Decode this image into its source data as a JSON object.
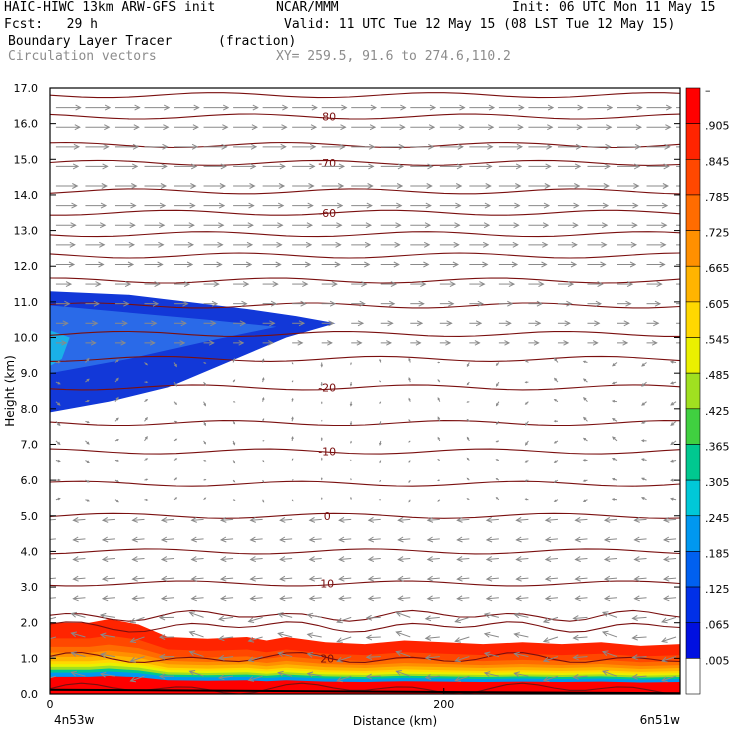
{
  "header": {
    "model_line": "HAIC-HIWC 13km ARW-GFS init",
    "org": "NCAR/MMM",
    "init_line": "Init: 06 UTC Mon 11 May 15",
    "fcst_line": "Fcst:   29 h",
    "valid_line": "Valid: 11 UTC Tue 12 May 15 (08 LST Tue 12 May 15)",
    "field_name": "Boundary Layer Tracer",
    "field_units": "(fraction)",
    "vector_label": "Circulation vectors",
    "xy_label": "XY= 259.5, 91.6 to 274.6,110.2"
  },
  "colors": {
    "contour": "#7a0f0f",
    "vector": "#8a8a8a",
    "frame": "#000000"
  },
  "chart_data": {
    "type": "heatmap",
    "xlabel": "Distance (km)",
    "ylabel": "Height (km)",
    "xlim": [
      0,
      320
    ],
    "ylim": [
      0,
      17
    ],
    "y_ticks": [
      "0.0",
      "1.0",
      "2.0",
      "3.0",
      "4.0",
      "5.0",
      "6.0",
      "7.0",
      "8.0",
      "9.0",
      "10.0",
      "11.0",
      "12.0",
      "13.0",
      "14.0",
      "15.0",
      "16.0",
      "17.0"
    ],
    "x_ticks": [
      {
        "value": 0,
        "label": "0"
      },
      {
        "value": 200,
        "label": "200"
      }
    ],
    "x_end_labels": {
      "left": "4n53w",
      "right": "6n51w"
    },
    "colorbar": {
      "labels": [
        "–",
        ".905",
        ".845",
        ".785",
        ".725",
        ".665",
        ".605",
        ".545",
        ".485",
        ".425",
        ".365",
        ".305",
        ".245",
        ".185",
        ".125",
        ".065",
        ".005"
      ],
      "colors": [
        "#ff0000",
        "#ff2400",
        "#ff4800",
        "#ff6c00",
        "#ff9000",
        "#ffb400",
        "#ffd800",
        "#eaf000",
        "#a0e020",
        "#40d040",
        "#00c890",
        "#00c8d8",
        "#0098f0",
        "#0060f0",
        "#0030e8",
        "#0010e0",
        "#ffffff"
      ]
    },
    "temperature_contours": [
      {
        "label": "-80",
        "height": 16.2
      },
      {
        "label": "-70",
        "height": 14.9
      },
      {
        "label": "-60",
        "height": 13.5
      },
      {
        "label": "-20",
        "height": 8.6
      },
      {
        "label": "-10",
        "height": 6.8
      },
      {
        "label": "0",
        "height": 5.0
      },
      {
        "label": "10",
        "height": 3.1
      },
      {
        "label": "20",
        "height": 1.0
      }
    ],
    "contour_heights": [
      0.15,
      1.0,
      1.9,
      2.2,
      3.1,
      4.0,
      5.0,
      5.9,
      6.8,
      7.6,
      8.6,
      9.4,
      10.1,
      10.9,
      11.6,
      12.3,
      12.9,
      13.5,
      14.1,
      14.9,
      15.4,
      16.2,
      16.8
    ],
    "plume_upper": {
      "top_edge": [
        [
          0,
          11.3
        ],
        [
          40,
          11.2
        ],
        [
          70,
          11.0
        ],
        [
          100,
          10.8
        ],
        [
          125,
          10.6
        ],
        [
          145,
          10.4
        ]
      ],
      "bottom_edge": [
        [
          145,
          10.4
        ],
        [
          120,
          10.0
        ],
        [
          90,
          9.3
        ],
        [
          60,
          8.6
        ],
        [
          30,
          8.2
        ],
        [
          0,
          7.9
        ]
      ],
      "value": 0.065
    },
    "boundary_layer": {
      "top": [
        [
          0,
          2.0
        ],
        [
          20,
          2.0
        ],
        [
          30,
          2.1
        ],
        [
          45,
          1.95
        ],
        [
          60,
          1.6
        ],
        [
          80,
          1.55
        ],
        [
          100,
          1.6
        ],
        [
          110,
          1.5
        ],
        [
          120,
          1.6
        ],
        [
          140,
          1.45
        ],
        [
          160,
          1.4
        ],
        [
          180,
          1.5
        ],
        [
          200,
          1.45
        ],
        [
          220,
          1.4
        ],
        [
          240,
          1.45
        ],
        [
          260,
          1.4
        ],
        [
          280,
          1.45
        ],
        [
          300,
          1.35
        ],
        [
          320,
          1.4
        ]
      ],
      "value": 0.905
    }
  }
}
